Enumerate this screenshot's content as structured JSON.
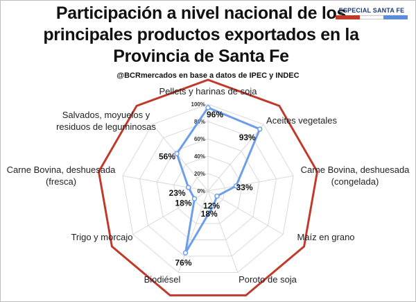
{
  "header": {
    "title_lines": [
      "Participación a nivel nacional de los",
      "principales productos exportados en la",
      "Provincia de Santa Fe"
    ],
    "subtitle": "@BCRmercados en base a datos de IPEC y INDEC",
    "badge": "ESPECIAL SANTA FE",
    "badge_colors": [
      "#c0392b",
      "#ffffff",
      "#5b8dd8"
    ]
  },
  "chart_data": {
    "type": "radar",
    "categories": [
      "Pellets y harinas de soja",
      "Aceites vegetales",
      "Carne Bovina, deshuesada (congelada)",
      "Maíz en grano",
      "Poroto de soja",
      "Biodiésel",
      "Trigo y morcajo",
      "Carne Bovina, deshuesada (fresca)",
      "Salvados, moyuelos y residuos de leguminosas"
    ],
    "category_label_lines": [
      [
        "Pellets y harinas de soja"
      ],
      [
        "Aceites vegetales"
      ],
      [
        "Carne Bovina, deshuesada",
        "(congelada)"
      ],
      [
        "Maíz en grano"
      ],
      [
        "Poroto de soja"
      ],
      [
        "Biodiésel"
      ],
      [
        "Trigo y morcajo"
      ],
      [
        "Carne Bovina, deshuesada",
        "(fresca)"
      ],
      [
        "Salvados, moyuelos y",
        "residuos de leguminosas"
      ]
    ],
    "values": [
      96,
      93,
      33,
      12,
      18,
      76,
      18,
      23,
      56
    ],
    "value_labels": [
      "96%",
      "93%",
      "33%",
      "12%",
      "18%",
      "76%",
      "18%",
      "23%",
      "56%"
    ],
    "rlim": [
      0,
      100
    ],
    "ticks": [
      "0%",
      "20%",
      "40%",
      "60%",
      "80%",
      "100%"
    ],
    "tick_values": [
      0,
      20,
      40,
      60,
      80,
      100
    ],
    "series_color": "#6d9eeb",
    "outline_color": "#c0392b",
    "grid_color": "#d9d9d9"
  }
}
